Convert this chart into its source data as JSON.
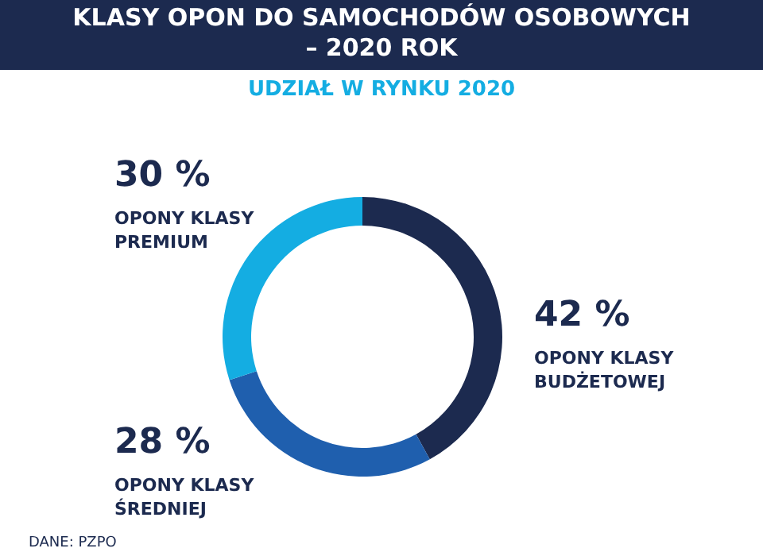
{
  "chart_data": {
    "type": "donut",
    "title": "KLASY OPON DO SAMOCHODÓW OSOBOWYCH\n–  2020 ROK",
    "subtitle": "UDZIAŁ W RYNKU 2020",
    "categories": [
      "OPONY KLASY\nBUDŻETOWEJ",
      "OPONY KLASY\nŚREDNIEJ",
      "OPONY KLASY\nPREMIUM"
    ],
    "values": [
      42,
      28,
      30
    ],
    "value_labels": [
      "42 %",
      "28 %",
      "30 %"
    ],
    "colors": [
      "#1c2a4f",
      "#1f5fae",
      "#14ade2"
    ],
    "annotations": [
      "DANE: PZPO"
    ]
  }
}
